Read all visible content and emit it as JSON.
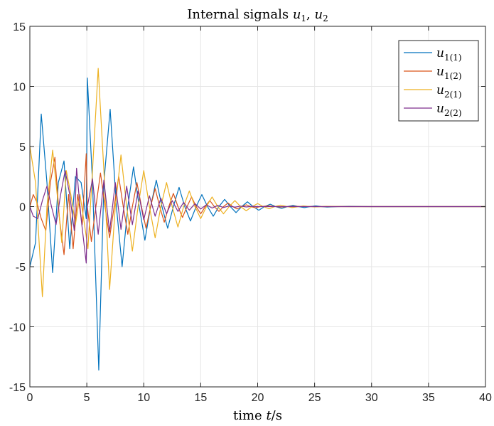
{
  "chart_data": {
    "type": "line",
    "title": "Internal signals u1, u2",
    "title_parts": {
      "prefix": "Internal signals ",
      "var1": "u",
      "sub1": "1",
      "sep": ", ",
      "var2": "u",
      "sub2": "2"
    },
    "xlabel": "time t/s",
    "xlabel_parts": {
      "prefix": "time ",
      "var": "t",
      "suffix": "/s"
    },
    "ylabel": "",
    "xlim": [
      0,
      40
    ],
    "ylim": [
      -15,
      15
    ],
    "xticks": [
      0,
      5,
      10,
      15,
      20,
      25,
      30,
      35,
      40
    ],
    "yticks": [
      -15,
      -10,
      -5,
      0,
      5,
      10,
      15
    ],
    "xtick_labels": [
      "0",
      "5",
      "10",
      "15",
      "20",
      "25",
      "30",
      "35",
      "40"
    ],
    "ytick_labels": [
      "-15",
      "-10",
      "-5",
      "0",
      "5",
      "10",
      "15"
    ],
    "grid": true,
    "legend_position": "top-right",
    "series": [
      {
        "name": "u1(1)",
        "legend_main": "u",
        "legend_sub": "1(1)",
        "color": "#0072BD",
        "x": [
          0,
          0.5,
          1.0,
          1.5,
          2.0,
          2.5,
          3.0,
          3.5,
          4.0,
          4.5,
          4.95,
          5.05,
          5.5,
          6.05,
          6.5,
          7.05,
          7.6,
          8.1,
          8.6,
          9.1,
          9.6,
          10.1,
          10.6,
          11.1,
          11.6,
          12.1,
          12.6,
          13.1,
          13.6,
          14.1,
          14.6,
          15.1,
          15.6,
          16.1,
          16.6,
          17.1,
          17.6,
          18.1,
          18.6,
          19.1,
          19.6,
          20.1,
          20.6,
          21.1,
          21.6,
          22.1,
          22.6,
          23.1,
          23.6,
          24.1,
          24.6,
          25.1,
          25.6,
          26.1,
          27,
          28,
          30,
          32,
          35,
          40
        ],
        "y": [
          -5.0,
          -3.0,
          7.7,
          2.0,
          -5.5,
          2.0,
          3.8,
          -3.5,
          2.5,
          2.0,
          -1.0,
          10.7,
          2.0,
          -13.6,
          2.0,
          8.1,
          0.0,
          -5.0,
          0.0,
          3.3,
          0.0,
          -2.8,
          0.0,
          2.2,
          0.0,
          -1.8,
          0.0,
          1.6,
          0.0,
          -1.2,
          0.0,
          1.0,
          0.0,
          -0.8,
          0.0,
          0.6,
          0.0,
          -0.5,
          0.0,
          0.4,
          0.0,
          -0.3,
          0.0,
          0.2,
          0.0,
          -0.15,
          0.0,
          0.1,
          0.0,
          -0.08,
          0.0,
          0.06,
          0.0,
          -0.04,
          0.0,
          0.02,
          0.0,
          0.0,
          0.0,
          0.0
        ]
      },
      {
        "name": "u1(2)",
        "legend_main": "u",
        "legend_sub": "1(2)",
        "color": "#D95319",
        "x": [
          0,
          0.3,
          0.6,
          1.0,
          1.4,
          1.8,
          2.2,
          2.6,
          3.0,
          3.4,
          3.8,
          4.2,
          4.6,
          4.95,
          5.05,
          5.4,
          5.8,
          6.2,
          6.6,
          7.0,
          7.4,
          7.8,
          8.2,
          8.6,
          9.0,
          9.4,
          9.8,
          10.2,
          10.6,
          11.0,
          11.4,
          11.8,
          12.2,
          12.6,
          13.0,
          13.4,
          13.8,
          14.2,
          14.6,
          15.0,
          15.4,
          15.8,
          16.2,
          16.6,
          17.0,
          17.4,
          17.8,
          18.2,
          18.6,
          19.0,
          19.4,
          19.8,
          20.2,
          21,
          22,
          23,
          25,
          28,
          32,
          40
        ],
        "y": [
          0.0,
          1.0,
          0.4,
          -1.0,
          -2.0,
          2.0,
          4.1,
          -1.0,
          -4.0,
          1.0,
          -3.5,
          1.0,
          -1.5,
          4.4,
          0.0,
          -2.9,
          0.0,
          2.8,
          0.0,
          -2.6,
          0.0,
          2.5,
          0.0,
          -2.3,
          0.0,
          2.0,
          0.0,
          -1.8,
          0.0,
          1.5,
          0.0,
          -1.3,
          0.0,
          1.1,
          0.0,
          -0.9,
          0.0,
          0.8,
          0.0,
          -0.6,
          0.0,
          0.5,
          0.0,
          -0.4,
          0.0,
          0.3,
          0.0,
          -0.2,
          0.0,
          0.15,
          0.0,
          -0.1,
          0.0,
          0.06,
          -0.04,
          0.02,
          0.0,
          0.0,
          0.0,
          0.0
        ]
      },
      {
        "name": "u2(1)",
        "legend_main": "u",
        "legend_sub": "2(1)",
        "color": "#EDB120",
        "x": [
          0,
          0.5,
          1.1,
          1.5,
          2.0,
          2.4,
          2.8,
          3.2,
          3.6,
          4.0,
          4.4,
          4.8,
          5.1,
          5.5,
          6.0,
          6.5,
          7.0,
          7.5,
          8.0,
          8.5,
          9.0,
          9.5,
          10.0,
          10.5,
          11.0,
          11.5,
          12.0,
          12.5,
          13.0,
          13.5,
          14.0,
          14.5,
          15.0,
          15.5,
          16.0,
          16.5,
          17.0,
          17.5,
          18.0,
          18.5,
          19.0,
          19.5,
          20.0,
          20.5,
          21.0,
          21.5,
          22.0,
          23,
          24,
          25,
          26,
          28,
          30,
          35,
          40
        ],
        "y": [
          5.0,
          2.0,
          -7.5,
          0.0,
          4.7,
          1.0,
          -3.0,
          3.0,
          1.0,
          -1.5,
          1.0,
          -1.5,
          -3.5,
          3.0,
          11.5,
          3.0,
          -6.9,
          0.0,
          4.3,
          0.0,
          -3.7,
          0.0,
          3.0,
          0.0,
          -2.6,
          0.0,
          2.0,
          0.0,
          -1.7,
          0.0,
          1.3,
          0.0,
          -1.0,
          0.0,
          0.8,
          0.0,
          -0.6,
          0.0,
          0.5,
          0.0,
          -0.35,
          0.0,
          0.25,
          0.0,
          -0.18,
          0.0,
          0.12,
          -0.08,
          0.05,
          -0.03,
          0.02,
          0.0,
          0.0,
          0.0,
          0.0
        ]
      },
      {
        "name": "u2(2)",
        "legend_main": "u",
        "legend_sub": "2(2)",
        "color": "#7E2F8E",
        "x": [
          0,
          0.3,
          0.7,
          1.1,
          1.5,
          1.9,
          2.3,
          2.7,
          3.1,
          3.5,
          3.9,
          4.1,
          4.5,
          4.95,
          5.05,
          5.5,
          6.0,
          6.5,
          7.0,
          7.5,
          8.0,
          8.5,
          9.0,
          9.5,
          10.0,
          10.5,
          11.0,
          11.5,
          12.0,
          12.5,
          13.0,
          13.5,
          14.0,
          14.5,
          15.0,
          15.5,
          16.0,
          16.5,
          17.0,
          17.5,
          18.0,
          18.5,
          19.0,
          19.5,
          20.0,
          21,
          22,
          24,
          26,
          30,
          35,
          40
        ],
        "y": [
          0.0,
          -0.8,
          -1.0,
          0.5,
          1.7,
          0.0,
          -1.5,
          1.0,
          3.0,
          1.0,
          -2.0,
          3.2,
          -1.0,
          -4.7,
          0.0,
          2.3,
          -2.3,
          2.2,
          -2.1,
          2.0,
          -1.9,
          1.7,
          -1.5,
          1.3,
          -1.1,
          0.9,
          -0.8,
          0.7,
          -0.6,
          0.5,
          -0.4,
          0.35,
          -0.3,
          0.25,
          -0.2,
          0.15,
          -0.12,
          0.1,
          -0.08,
          0.06,
          -0.05,
          0.04,
          -0.03,
          0.02,
          0.0,
          0.0,
          0.0,
          0.0,
          0.0,
          0.0,
          0.0,
          0.0
        ]
      }
    ]
  }
}
